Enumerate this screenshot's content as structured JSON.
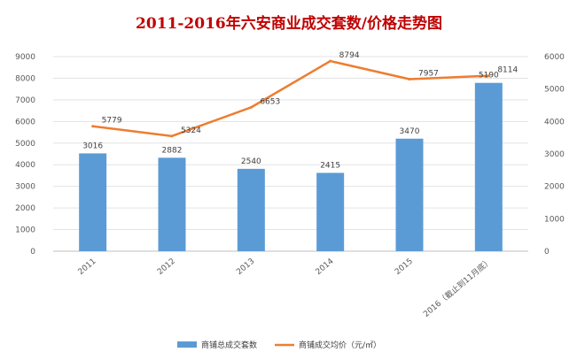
{
  "chart_data": {
    "type": "bar",
    "title": "2011-2016年六安商业成交套数/价格走势图",
    "categories": [
      "2011",
      "2012",
      "2013",
      "2014",
      "2015",
      "2016（截止到11月底）"
    ],
    "series": [
      {
        "name": "商铺总成交套数",
        "type": "bar",
        "axis": "right",
        "values": [
          3016,
          2882,
          2540,
          2415,
          3470,
          5190
        ],
        "color": "#5b9bd5"
      },
      {
        "name": "商铺成交均价（元/㎡）",
        "type": "line",
        "axis": "left",
        "values": [
          5779,
          5324,
          6653,
          8794,
          7957,
          8114
        ],
        "color": "#ed7d31"
      }
    ],
    "y_left": {
      "min": 0,
      "max": 9000,
      "ticks": [
        0,
        1000,
        2000,
        3000,
        4000,
        5000,
        6000,
        7000,
        8000,
        9000
      ]
    },
    "y_right": {
      "min": 0,
      "max": 6000,
      "ticks": [
        0,
        1000,
        2000,
        3000,
        4000,
        5000,
        6000
      ]
    },
    "grid": true,
    "legend_position": "bottom"
  }
}
